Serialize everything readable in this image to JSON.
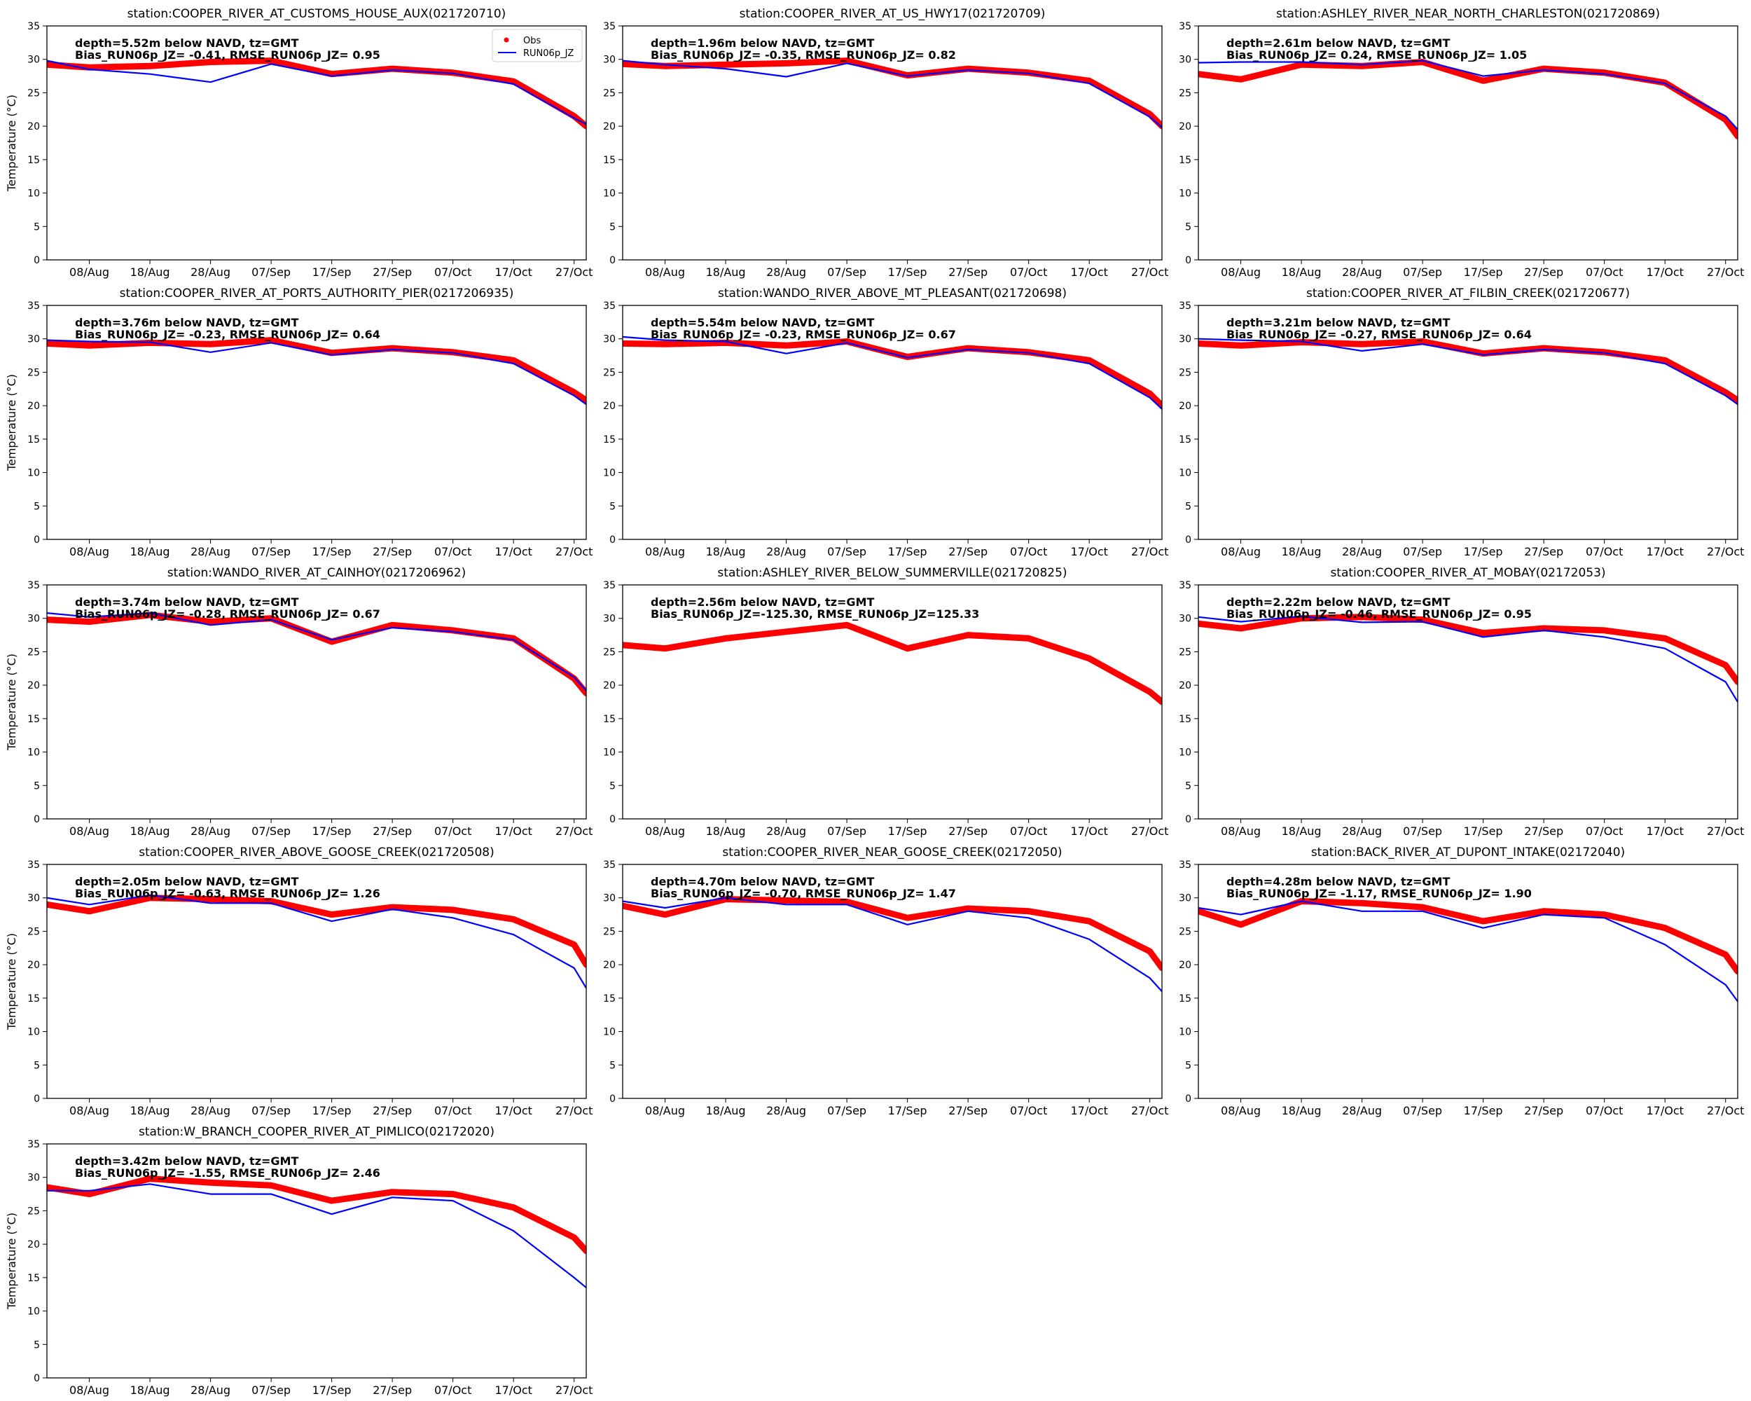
{
  "figure": {
    "ylabel": "Temperature ($^\\circ$C)",
    "legend": {
      "obs_label": "Obs",
      "model_label": "RUN06p_JZ",
      "placement": "upper-right of first panel"
    },
    "xticks": [
      "08/Aug",
      "18/Aug",
      "28/Aug",
      "07/Sep",
      "17/Sep",
      "27/Sep",
      "07/Oct",
      "17/Oct",
      "27/Oct"
    ],
    "yticks": [
      0,
      5,
      10,
      15,
      20,
      25,
      30,
      35
    ],
    "colors": {
      "obs": "#ff0000",
      "model": "#0000ff"
    }
  },
  "chart_data": [
    {
      "type": "line",
      "title": "station:COOPER_RIVER_AT_CUSTOMS_HOUSE_AUX(021720710)",
      "depth_text": "depth=5.52m below NAVD, tz=GMT",
      "stats_text": "Bias_RUN06p_JZ= -0.41, RMSE_RUN06p_JZ=  0.95",
      "x": [
        "01/Aug",
        "08/Aug",
        "18/Aug",
        "28/Aug",
        "07/Sep",
        "17/Sep",
        "27/Sep",
        "07/Oct",
        "17/Oct",
        "27/Oct",
        "29/Oct"
      ],
      "ylim": [
        0,
        35
      ],
      "series": [
        {
          "name": "Obs",
          "values": [
            29.2,
            28.8,
            29.0,
            29.6,
            29.8,
            27.8,
            28.6,
            28.0,
            26.7,
            21.5,
            20.0
          ]
        },
        {
          "name": "RUN06p_JZ",
          "values": [
            29.8,
            28.5,
            27.8,
            26.6,
            29.3,
            27.5,
            28.4,
            27.9,
            26.3,
            21.2,
            20.3
          ]
        }
      ]
    },
    {
      "type": "line",
      "title": "station:COOPER_RIVER_AT_US_HWY17(021720709)",
      "depth_text": "depth=1.96m below NAVD, tz=GMT",
      "stats_text": "Bias_RUN06p_JZ= -0.35, RMSE_RUN06p_JZ=  0.82",
      "x": [
        "01/Aug",
        "08/Aug",
        "18/Aug",
        "28/Aug",
        "07/Sep",
        "17/Sep",
        "27/Sep",
        "07/Oct",
        "17/Oct",
        "27/Oct",
        "29/Oct"
      ],
      "ylim": [
        0,
        35
      ],
      "series": [
        {
          "name": "Obs",
          "values": [
            29.3,
            29.0,
            29.2,
            29.4,
            29.8,
            27.6,
            28.6,
            28.0,
            26.8,
            21.8,
            20.0
          ]
        },
        {
          "name": "RUN06p_JZ",
          "values": [
            29.8,
            29.2,
            28.6,
            27.4,
            29.4,
            27.5,
            28.4,
            27.9,
            26.4,
            21.4,
            19.8
          ]
        }
      ]
    },
    {
      "type": "line",
      "title": "station:ASHLEY_RIVER_NEAR_NORTH_CHARLESTON(021720869)",
      "depth_text": "depth=2.61m below NAVD, tz=GMT",
      "stats_text": "Bias_RUN06p_JZ=  0.24, RMSE_RUN06p_JZ=  1.05",
      "x": [
        "01/Aug",
        "08/Aug",
        "18/Aug",
        "28/Aug",
        "07/Sep",
        "17/Sep",
        "27/Sep",
        "07/Oct",
        "17/Oct",
        "27/Oct",
        "29/Oct"
      ],
      "ylim": [
        0,
        35
      ],
      "series": [
        {
          "name": "Obs",
          "values": [
            27.8,
            27.0,
            29.2,
            29.0,
            29.6,
            26.8,
            28.6,
            28.0,
            26.5,
            21.0,
            18.5
          ]
        },
        {
          "name": "RUN06p_JZ",
          "values": [
            29.5,
            29.6,
            29.6,
            29.2,
            29.8,
            27.5,
            28.4,
            27.8,
            26.4,
            21.5,
            19.5
          ]
        }
      ]
    },
    {
      "type": "line",
      "title": "station:COOPER_RIVER_AT_PORTS_AUTHORITY_PIER(0217206935)",
      "depth_text": "depth=3.76m below NAVD, tz=GMT",
      "stats_text": "Bias_RUN06p_JZ= -0.23, RMSE_RUN06p_JZ=  0.64",
      "x": [
        "01/Aug",
        "08/Aug",
        "18/Aug",
        "28/Aug",
        "07/Sep",
        "17/Sep",
        "27/Sep",
        "07/Oct",
        "17/Oct",
        "27/Oct",
        "29/Oct"
      ],
      "ylim": [
        0,
        35
      ],
      "series": [
        {
          "name": "Obs",
          "values": [
            29.3,
            29.0,
            29.4,
            29.2,
            29.8,
            27.9,
            28.6,
            28.0,
            26.8,
            22.0,
            20.8
          ]
        },
        {
          "name": "RUN06p_JZ",
          "values": [
            29.8,
            29.6,
            29.5,
            28.0,
            29.4,
            27.6,
            28.4,
            27.9,
            26.3,
            21.5,
            20.2
          ]
        }
      ]
    },
    {
      "type": "line",
      "title": "station:WANDO_RIVER_ABOVE_MT_PLEASANT(021720698)",
      "depth_text": "depth=5.54m below NAVD, tz=GMT",
      "stats_text": "Bias_RUN06p_JZ= -0.23, RMSE_RUN06p_JZ=  0.67",
      "x": [
        "01/Aug",
        "08/Aug",
        "18/Aug",
        "28/Aug",
        "07/Sep",
        "17/Sep",
        "27/Sep",
        "07/Oct",
        "17/Oct",
        "27/Oct",
        "29/Oct"
      ],
      "ylim": [
        0,
        35
      ],
      "series": [
        {
          "name": "Obs",
          "values": [
            29.3,
            29.2,
            29.4,
            29.0,
            29.6,
            27.3,
            28.6,
            28.0,
            26.8,
            21.8,
            20.0
          ]
        },
        {
          "name": "RUN06p_JZ",
          "values": [
            30.3,
            29.8,
            29.6,
            27.8,
            29.4,
            27.2,
            28.4,
            27.9,
            26.3,
            21.2,
            19.5
          ]
        }
      ]
    },
    {
      "type": "line",
      "title": "station:COOPER_RIVER_AT_FILBIN_CREEK(021720677)",
      "depth_text": "depth=3.21m below NAVD, tz=GMT",
      "stats_text": "Bias_RUN06p_JZ= -0.27, RMSE_RUN06p_JZ=  0.64",
      "x": [
        "01/Aug",
        "08/Aug",
        "18/Aug",
        "28/Aug",
        "07/Sep",
        "17/Sep",
        "27/Sep",
        "07/Oct",
        "17/Oct",
        "27/Oct",
        "29/Oct"
      ],
      "ylim": [
        0,
        35
      ],
      "series": [
        {
          "name": "Obs",
          "values": [
            29.3,
            29.0,
            29.5,
            29.2,
            29.6,
            27.8,
            28.6,
            28.0,
            26.8,
            22.0,
            20.8
          ]
        },
        {
          "name": "RUN06p_JZ",
          "values": [
            30.0,
            29.8,
            29.6,
            28.2,
            29.2,
            27.6,
            28.4,
            27.9,
            26.3,
            21.5,
            20.2
          ]
        }
      ]
    },
    {
      "type": "line",
      "title": "station:WANDO_RIVER_AT_CAINHOY(0217206962)",
      "depth_text": "depth=3.74m below NAVD, tz=GMT",
      "stats_text": "Bias_RUN06p_JZ= -0.28, RMSE_RUN06p_JZ=  0.67",
      "x": [
        "01/Aug",
        "08/Aug",
        "18/Aug",
        "28/Aug",
        "07/Sep",
        "17/Sep",
        "27/Sep",
        "07/Oct",
        "17/Oct",
        "27/Oct",
        "29/Oct"
      ],
      "ylim": [
        0,
        35
      ],
      "series": [
        {
          "name": "Obs",
          "values": [
            29.8,
            29.5,
            30.5,
            29.5,
            30.0,
            26.5,
            29.0,
            28.2,
            27.0,
            21.0,
            18.8
          ]
        },
        {
          "name": "RUN06p_JZ",
          "values": [
            30.8,
            30.2,
            30.8,
            29.0,
            29.8,
            26.8,
            28.6,
            28.0,
            26.8,
            21.2,
            19.2
          ]
        }
      ]
    },
    {
      "type": "line",
      "title": "station:ASHLEY_RIVER_BELOW_SUMMERVILLE(021720825)",
      "depth_text": "depth=2.56m below NAVD, tz=GMT",
      "stats_text": "Bias_RUN06p_JZ=-125.30, RMSE_RUN06p_JZ=125.33",
      "x": [
        "01/Aug",
        "08/Aug",
        "18/Aug",
        "28/Aug",
        "07/Sep",
        "17/Sep",
        "27/Sep",
        "07/Oct",
        "17/Oct",
        "27/Oct",
        "29/Oct"
      ],
      "ylim": [
        0,
        35
      ],
      "series": [
        {
          "name": "Obs",
          "values": [
            26.0,
            25.5,
            27.0,
            28.0,
            29.0,
            25.5,
            27.5,
            27.0,
            24.0,
            19.0,
            17.5
          ]
        }
      ]
    },
    {
      "type": "line",
      "title": "station:COOPER_RIVER_AT_MOBAY(02172053)",
      "depth_text": "depth=2.22m below NAVD, tz=GMT",
      "stats_text": "Bias_RUN06p_JZ= -0.46, RMSE_RUN06p_JZ=  0.95",
      "x": [
        "01/Aug",
        "08/Aug",
        "18/Aug",
        "28/Aug",
        "07/Sep",
        "17/Sep",
        "27/Sep",
        "07/Oct",
        "17/Oct",
        "27/Oct",
        "29/Oct"
      ],
      "ylim": [
        0,
        35
      ],
      "series": [
        {
          "name": "Obs",
          "values": [
            29.2,
            28.5,
            30.0,
            30.2,
            29.8,
            27.8,
            28.5,
            28.2,
            27.0,
            23.0,
            20.5
          ]
        },
        {
          "name": "RUN06p_JZ",
          "values": [
            30.2,
            29.5,
            30.3,
            29.4,
            29.5,
            27.2,
            28.2,
            27.2,
            25.5,
            20.5,
            17.5
          ]
        }
      ]
    },
    {
      "type": "line",
      "title": "station:COOPER_RIVER_ABOVE_GOOSE_CREEK(021720508)",
      "depth_text": "depth=2.05m below NAVD, tz=GMT",
      "stats_text": "Bias_RUN06p_JZ= -0.63, RMSE_RUN06p_JZ=  1.26",
      "x": [
        "01/Aug",
        "08/Aug",
        "18/Aug",
        "28/Aug",
        "07/Sep",
        "17/Sep",
        "27/Sep",
        "07/Oct",
        "17/Oct",
        "27/Oct",
        "29/Oct"
      ],
      "ylim": [
        0,
        35
      ],
      "series": [
        {
          "name": "Obs",
          "values": [
            29.0,
            28.0,
            30.0,
            29.8,
            29.5,
            27.5,
            28.6,
            28.2,
            26.8,
            23.0,
            20.0
          ]
        },
        {
          "name": "RUN06p_JZ",
          "values": [
            30.0,
            29.0,
            30.4,
            29.2,
            29.2,
            26.5,
            28.3,
            27.0,
            24.5,
            19.5,
            16.5
          ]
        }
      ]
    },
    {
      "type": "line",
      "title": "station:COOPER_RIVER_NEAR_GOOSE_CREEK(02172050)",
      "depth_text": "depth=4.70m below NAVD, tz=GMT",
      "stats_text": "Bias_RUN06p_JZ= -0.70, RMSE_RUN06p_JZ=  1.47",
      "x": [
        "01/Aug",
        "08/Aug",
        "18/Aug",
        "28/Aug",
        "07/Sep",
        "17/Sep",
        "27/Sep",
        "07/Oct",
        "17/Oct",
        "27/Oct",
        "29/Oct"
      ],
      "ylim": [
        0,
        35
      ],
      "series": [
        {
          "name": "Obs",
          "values": [
            28.8,
            27.5,
            29.8,
            29.6,
            29.4,
            27.0,
            28.4,
            28.0,
            26.5,
            22.0,
            19.5
          ]
        },
        {
          "name": "RUN06p_JZ",
          "values": [
            29.5,
            28.5,
            30.0,
            29.0,
            29.0,
            26.0,
            28.0,
            27.0,
            23.8,
            18.0,
            16.0
          ]
        }
      ]
    },
    {
      "type": "line",
      "title": "station:BACK_RIVER_AT_DUPONT_INTAKE(02172040)",
      "depth_text": "depth=4.28m below NAVD, tz=GMT",
      "stats_text": "Bias_RUN06p_JZ= -1.17, RMSE_RUN06p_JZ=  1.90",
      "x": [
        "01/Aug",
        "08/Aug",
        "18/Aug",
        "28/Aug",
        "07/Sep",
        "17/Sep",
        "27/Sep",
        "07/Oct",
        "17/Oct",
        "27/Oct",
        "29/Oct"
      ],
      "ylim": [
        0,
        35
      ],
      "series": [
        {
          "name": "Obs",
          "values": [
            28.0,
            26.0,
            29.5,
            29.2,
            28.6,
            26.5,
            28.0,
            27.5,
            25.5,
            21.5,
            19.0
          ]
        },
        {
          "name": "RUN06p_JZ",
          "values": [
            28.5,
            27.5,
            29.5,
            28.0,
            28.0,
            25.5,
            27.5,
            27.0,
            23.0,
            17.0,
            14.5
          ]
        }
      ]
    },
    {
      "type": "line",
      "title": "station:W_BRANCH_COOPER_RIVER_AT_PIMLICO(02172020)",
      "depth_text": "depth=3.42m below NAVD, tz=GMT",
      "stats_text": "Bias_RUN06p_JZ= -1.55, RMSE_RUN06p_JZ=  2.46",
      "x": [
        "01/Aug",
        "08/Aug",
        "18/Aug",
        "28/Aug",
        "07/Sep",
        "17/Sep",
        "27/Sep",
        "07/Oct",
        "17/Oct",
        "27/Oct",
        "29/Oct"
      ],
      "ylim": [
        0,
        35
      ],
      "series": [
        {
          "name": "Obs",
          "values": [
            28.5,
            27.5,
            29.8,
            29.2,
            28.8,
            26.5,
            27.8,
            27.5,
            25.5,
            21.0,
            19.0
          ]
        },
        {
          "name": "RUN06p_JZ",
          "values": [
            28.0,
            28.0,
            29.0,
            27.5,
            27.5,
            24.5,
            27.0,
            26.5,
            22.0,
            15.0,
            13.5
          ]
        }
      ]
    }
  ]
}
